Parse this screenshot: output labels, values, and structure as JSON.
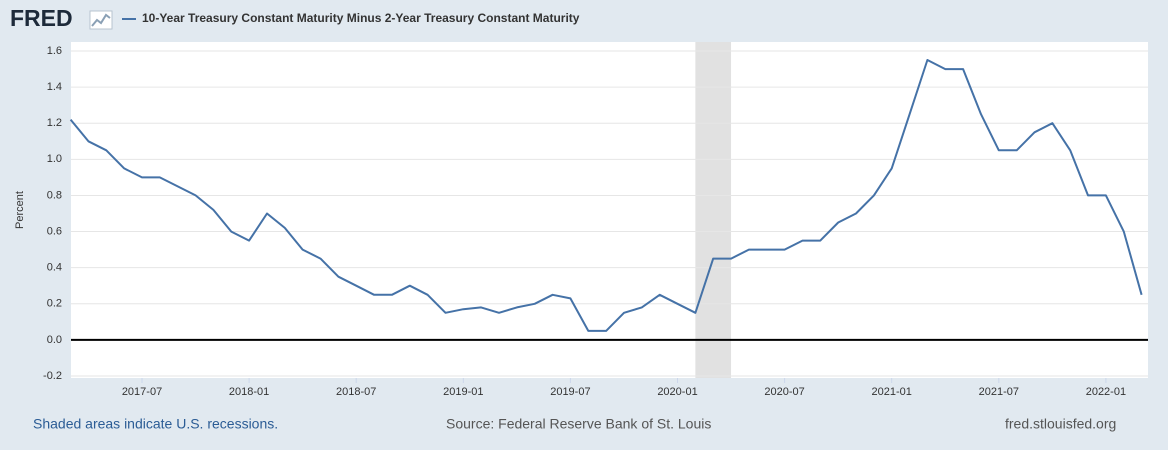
{
  "header": {
    "logo": "FRED"
  },
  "chart_data": {
    "type": "line",
    "ylabel": "Percent",
    "x": [
      "2017-03",
      "2017-04",
      "2017-05",
      "2017-06",
      "2017-07",
      "2017-08",
      "2017-09",
      "2017-10",
      "2017-11",
      "2017-12",
      "2018-01",
      "2018-02",
      "2018-03",
      "2018-04",
      "2018-05",
      "2018-06",
      "2018-07",
      "2018-08",
      "2018-09",
      "2018-10",
      "2018-11",
      "2018-12",
      "2019-01",
      "2019-02",
      "2019-03",
      "2019-04",
      "2019-05",
      "2019-06",
      "2019-07",
      "2019-08",
      "2019-09",
      "2019-10",
      "2019-11",
      "2019-12",
      "2020-01",
      "2020-02",
      "2020-03",
      "2020-04",
      "2020-05",
      "2020-06",
      "2020-07",
      "2020-08",
      "2020-09",
      "2020-10",
      "2020-11",
      "2020-12",
      "2021-01",
      "2021-02",
      "2021-03",
      "2021-04",
      "2021-05",
      "2021-06",
      "2021-07",
      "2021-08",
      "2021-09",
      "2021-10",
      "2021-11",
      "2021-12",
      "2022-01",
      "2022-02",
      "2022-03"
    ],
    "series": [
      {
        "name": "10-Year Treasury Constant Maturity Minus 2-Year Treasury Constant Maturity",
        "color": "#4572a7",
        "values": [
          1.22,
          1.1,
          1.05,
          0.95,
          0.9,
          0.9,
          0.85,
          0.8,
          0.72,
          0.6,
          0.55,
          0.7,
          0.62,
          0.5,
          0.45,
          0.35,
          0.3,
          0.25,
          0.25,
          0.3,
          0.25,
          0.15,
          0.17,
          0.18,
          0.15,
          0.18,
          0.2,
          0.25,
          0.23,
          0.05,
          0.05,
          0.15,
          0.18,
          0.25,
          0.2,
          0.15,
          0.45,
          0.45,
          0.5,
          0.5,
          0.5,
          0.55,
          0.55,
          0.65,
          0.7,
          0.8,
          0.95,
          1.25,
          1.55,
          1.5,
          1.5,
          1.25,
          1.05,
          1.05,
          1.15,
          1.2,
          1.05,
          0.8,
          0.8,
          0.6,
          0.25
        ]
      }
    ],
    "xlim": [
      "2017-03",
      "2022-03"
    ],
    "xticks": [
      "2017-07",
      "2018-01",
      "2018-07",
      "2019-01",
      "2019-07",
      "2020-01",
      "2020-07",
      "2021-01",
      "2021-07",
      "2022-01"
    ],
    "ylim": [
      -0.2,
      1.6
    ],
    "yticks": [
      -0.2,
      {
        "value": 0,
        "label": "0.0"
      },
      0.2,
      0.4,
      0.6,
      0.8,
      {
        "value": 1,
        "label": "1.0"
      },
      1.2,
      1.4,
      1.6
    ],
    "recessions": [
      [
        "2020-02",
        "2020-04"
      ]
    ],
    "grid": true
  },
  "footer": {
    "note": "Shaded areas indicate U.S. recessions.",
    "source": "Source: Federal Reserve Bank of St. Louis",
    "url": "fred.stlouisfed.org"
  }
}
